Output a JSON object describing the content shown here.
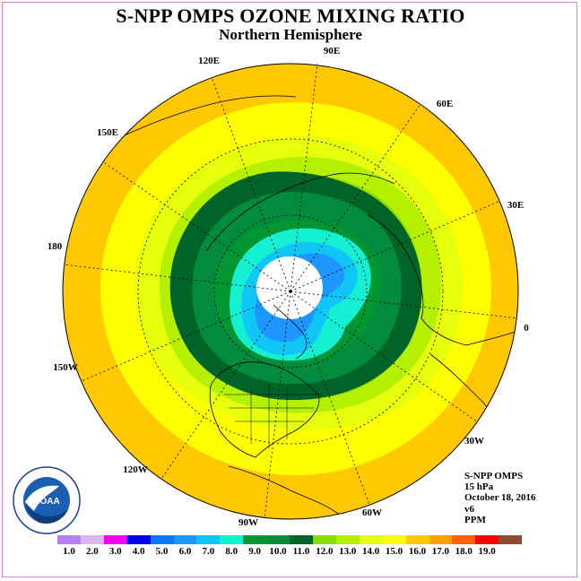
{
  "title": "S-NPP OMPS OZONE MIXING RATIO",
  "subtitle": "Northern Hemisphere",
  "longitude_labels": [
    "90E",
    "60E",
    "30E",
    "0",
    "30W",
    "60W",
    "90W",
    "120W",
    "150W",
    "180",
    "150E",
    "120E"
  ],
  "info": {
    "instrument": "S-NPP OMPS",
    "pressure": "15 hPa",
    "date": "October 18, 2016",
    "version": "v6",
    "units": "PPM"
  },
  "colorbar": {
    "colors": [
      "#b87ff0",
      "#dcb4ee",
      "#f000f0",
      "#0000e6",
      "#0a78f0",
      "#1e96ff",
      "#10c6f6",
      "#16f0d2",
      "#009632",
      "#008c3c",
      "#006428",
      "#88dc00",
      "#b4f000",
      "#e6ff0a",
      "#ffff00",
      "#ffc800",
      "#ffa000",
      "#ff6400",
      "#ff0000",
      "#8c4b32"
    ],
    "labels": [
      "1.0",
      "2.0",
      "3.0",
      "4.0",
      "5.0",
      "6.0",
      "7.0",
      "8.0",
      "9.0",
      "10.0",
      "11.0",
      "12.0",
      "13.0",
      "14.0",
      "15.0",
      "16.0",
      "17.0",
      "18.0",
      "19.0"
    ]
  },
  "logo_text": "NOAA"
}
